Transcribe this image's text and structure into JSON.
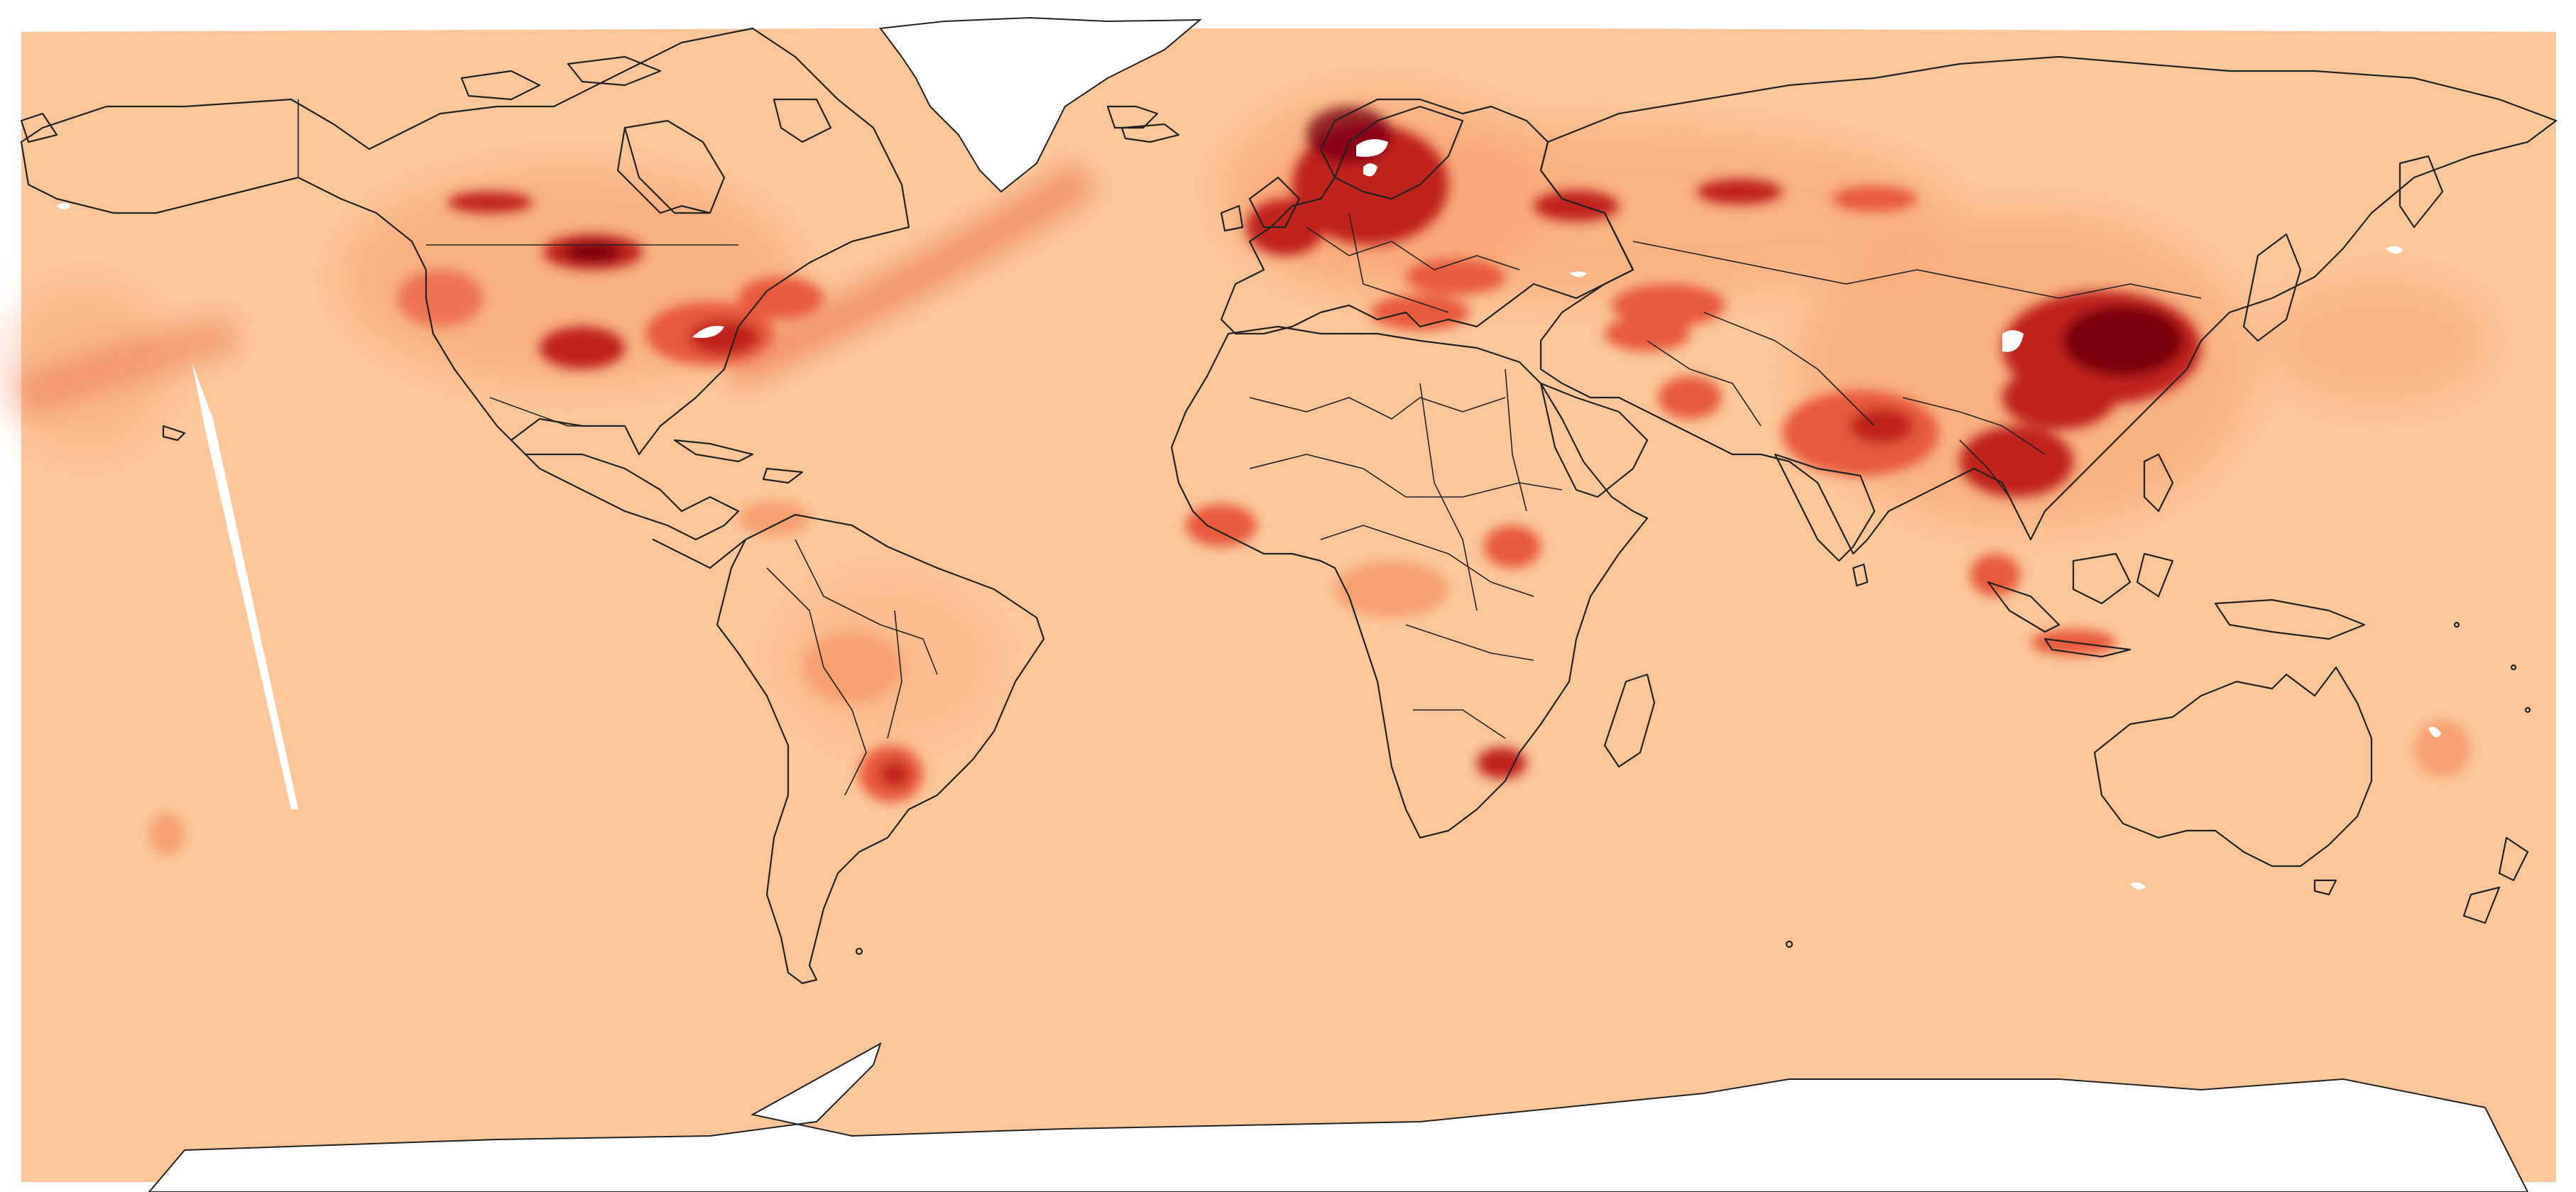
{
  "map": {
    "projection": "equirectangular",
    "background_color": "#fbc79a",
    "no_data_color": "#ffffff",
    "coastline_color": "#222222",
    "colormap": [
      "#fbc79a",
      "#f7a070",
      "#e85a3a",
      "#c0221c",
      "#7a0010"
    ],
    "hotspots": [
      {
        "region": "eastern-china",
        "level": "very-high"
      },
      {
        "region": "northern-europe",
        "level": "high"
      },
      {
        "region": "central-united-states",
        "level": "high"
      },
      {
        "region": "eastern-united-states",
        "level": "high"
      },
      {
        "region": "southeast-asia",
        "level": "high"
      },
      {
        "region": "india",
        "level": "medium"
      },
      {
        "region": "russia",
        "level": "medium"
      },
      {
        "region": "north-atlantic-plume",
        "level": "medium"
      },
      {
        "region": "south-america",
        "level": "low"
      },
      {
        "region": "southern-africa",
        "level": "low"
      },
      {
        "region": "west-africa",
        "level": "low"
      }
    ]
  }
}
